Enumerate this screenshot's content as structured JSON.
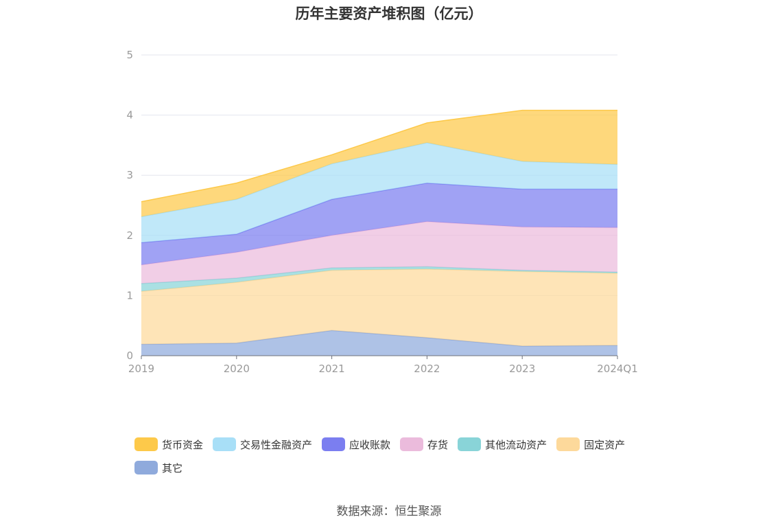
{
  "chart_data": {
    "type": "area",
    "stacked": true,
    "title": "历年主要资产堆积图（亿元）",
    "x": [
      "2019",
      "2020",
      "2021",
      "2022",
      "2023",
      "2024Q1"
    ],
    "ylim": [
      0,
      5
    ],
    "yticks": [
      "0",
      "1",
      "2",
      "3",
      "4",
      "5"
    ],
    "grid": true,
    "legend_position": "bottom",
    "series": [
      {
        "name": "其它",
        "color": "#8faadc",
        "values": [
          0.19,
          0.21,
          0.42,
          0.3,
          0.16,
          0.17
        ]
      },
      {
        "name": "固定资产",
        "color": "#fdd99b",
        "values": [
          0.88,
          1.01,
          1.0,
          1.14,
          1.24,
          1.2
        ]
      },
      {
        "name": "其他流动资产",
        "color": "#89d4d8",
        "values": [
          0.13,
          0.07,
          0.04,
          0.04,
          0.02,
          0.02
        ]
      },
      {
        "name": "存货",
        "color": "#ebbbdc",
        "values": [
          0.31,
          0.43,
          0.54,
          0.75,
          0.72,
          0.74
        ]
      },
      {
        "name": "应收账款",
        "color": "#7b7ef0",
        "values": [
          0.37,
          0.3,
          0.6,
          0.64,
          0.63,
          0.64
        ]
      },
      {
        "name": "交易性金融资产",
        "color": "#a8dff7",
        "values": [
          0.43,
          0.58,
          0.59,
          0.67,
          0.46,
          0.41
        ]
      },
      {
        "name": "货币资金",
        "color": "#fdc94a",
        "values": [
          0.25,
          0.27,
          0.15,
          0.33,
          0.85,
          0.9
        ]
      }
    ]
  },
  "legend": {
    "items": [
      {
        "label": "货币资金",
        "color": "#fdc94a"
      },
      {
        "label": "交易性金融资产",
        "color": "#a8dff7"
      },
      {
        "label": "应收账款",
        "color": "#7b7ef0"
      },
      {
        "label": "存货",
        "color": "#ebbbdc"
      },
      {
        "label": "其他流动资产",
        "color": "#89d4d8"
      },
      {
        "label": "固定资产",
        "color": "#fdd99b"
      },
      {
        "label": "其它",
        "color": "#8faadc"
      }
    ]
  },
  "source": "数据来源：恒生聚源"
}
